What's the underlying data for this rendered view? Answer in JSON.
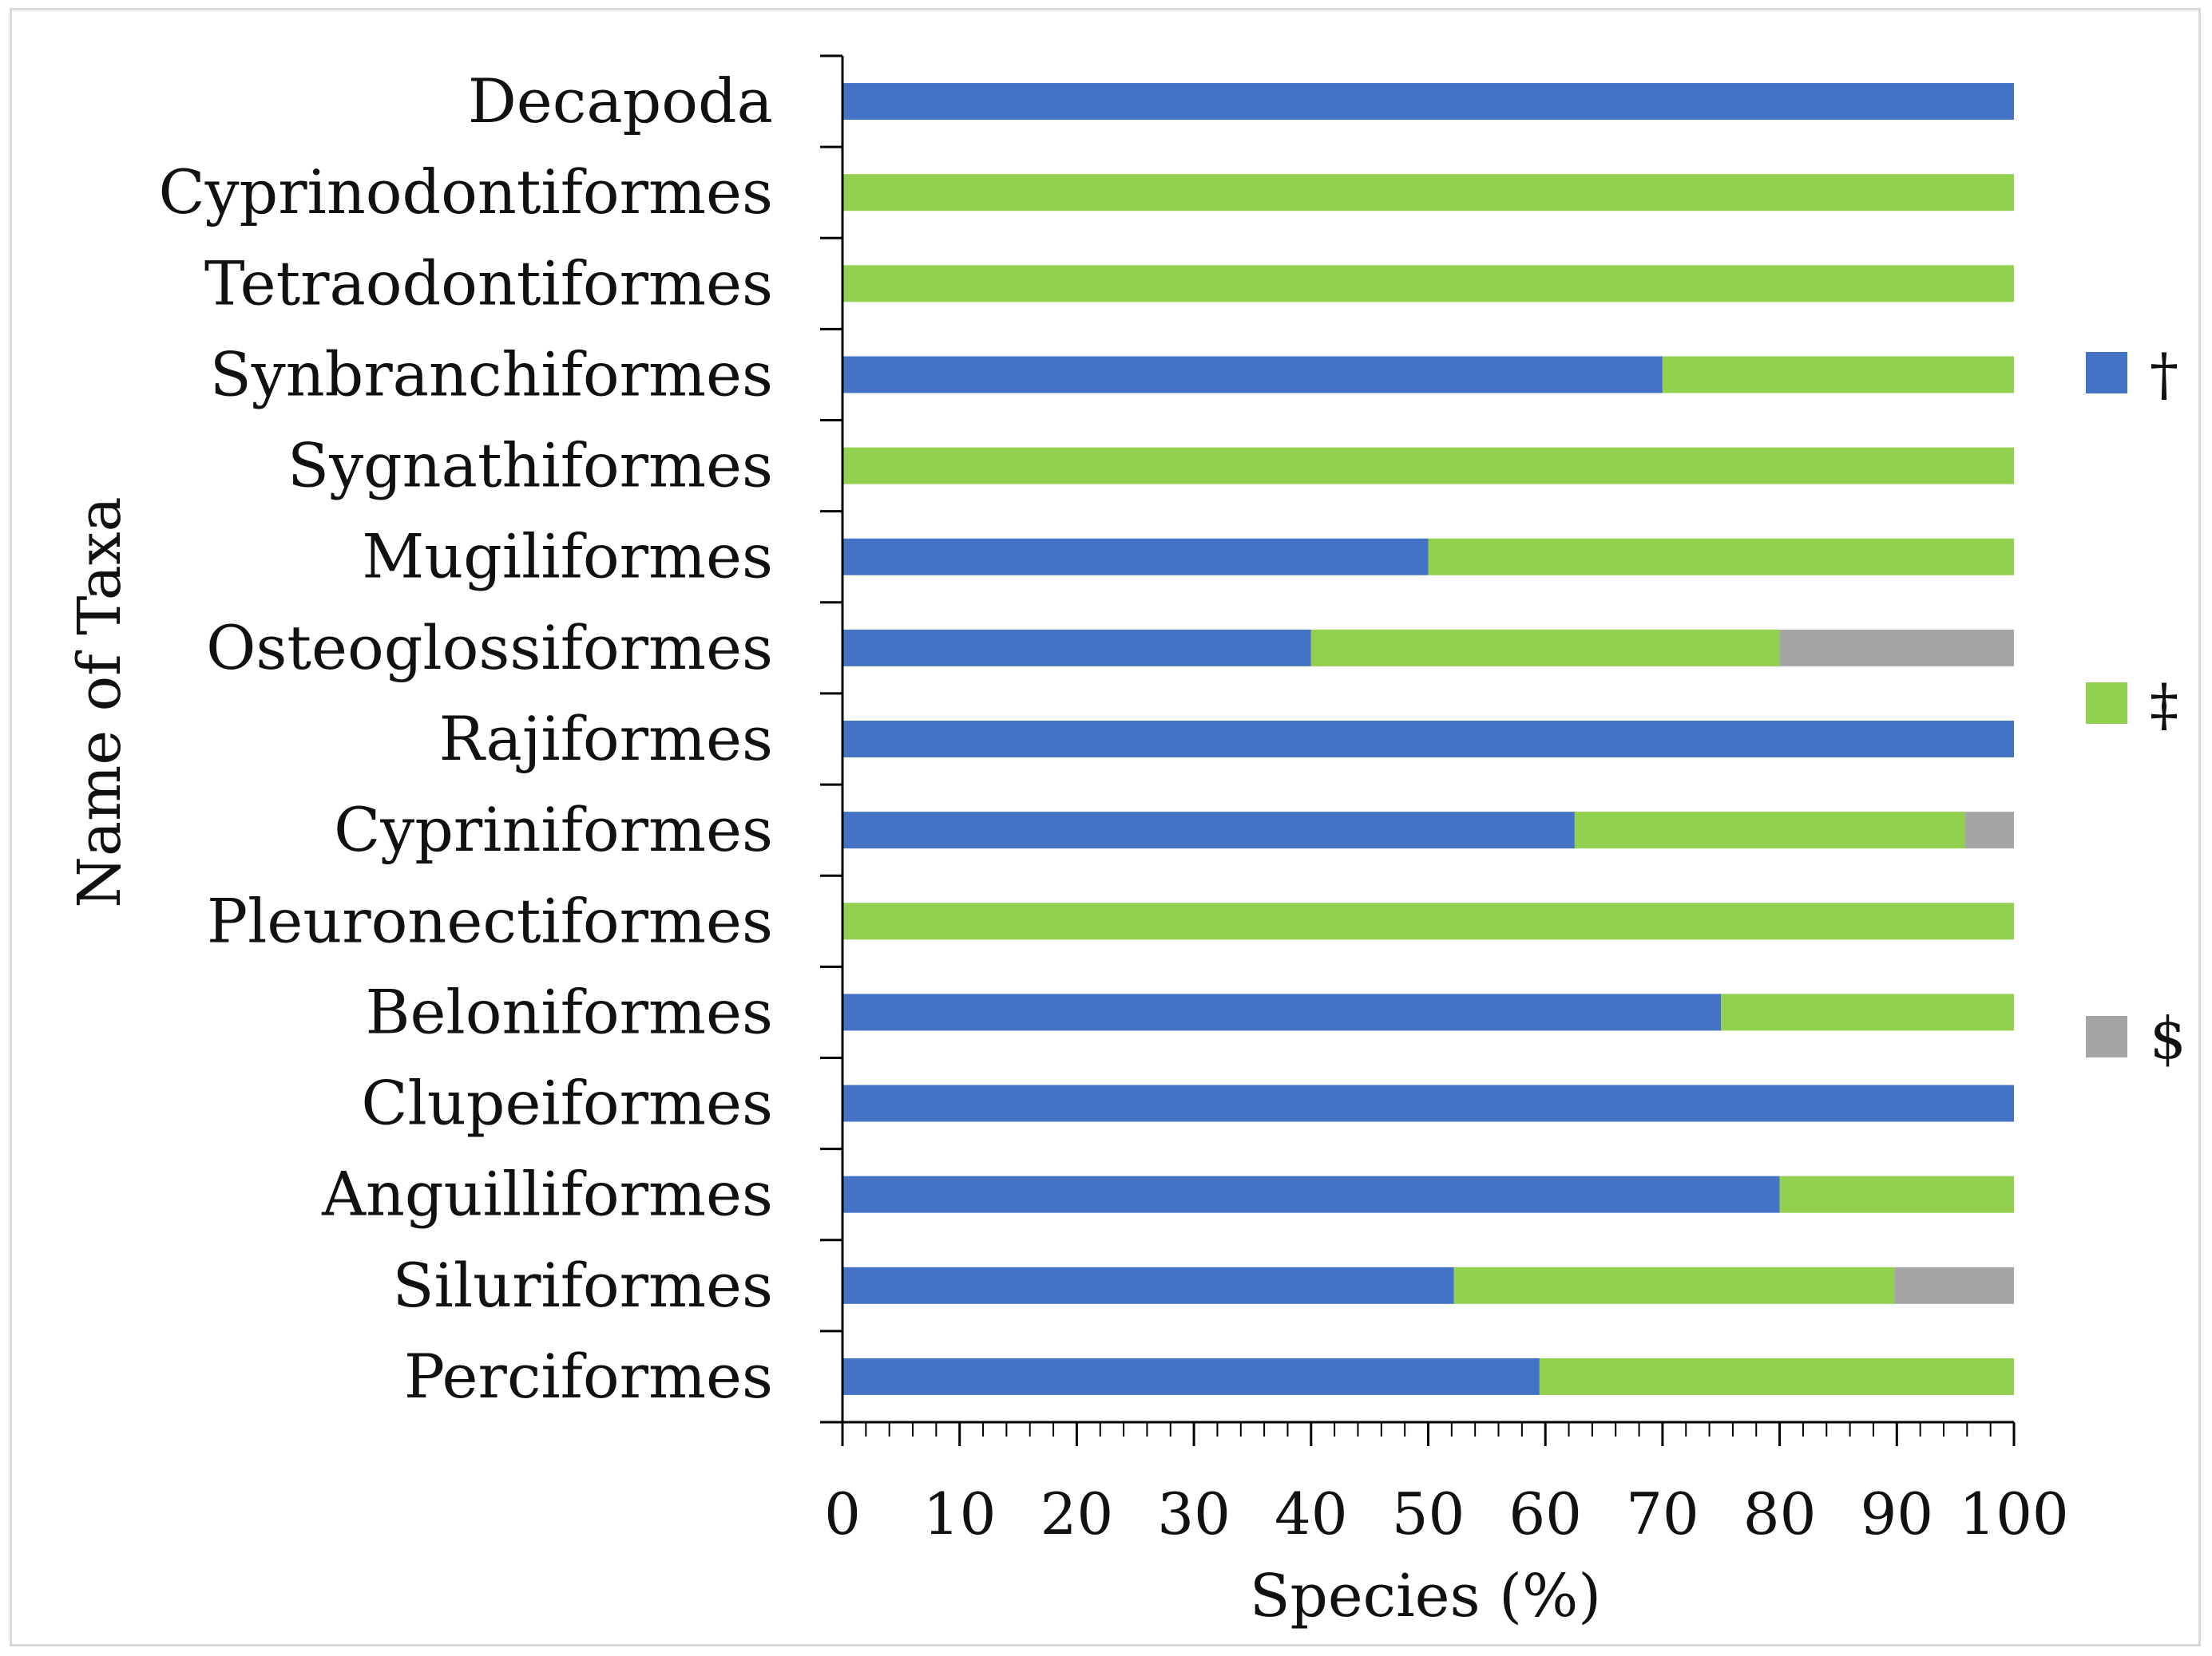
{
  "chart_data": {
    "type": "bar",
    "stacked": true,
    "orientation": "horizontal",
    "title": "",
    "xlabel": "Species (%)",
    "ylabel": "Name of Taxa",
    "xlim": [
      0,
      100
    ],
    "xticks": [
      "0",
      "10",
      "20",
      "30",
      "40",
      "50",
      "60",
      "70",
      "80",
      "90",
      "100"
    ],
    "categories": [
      "Decapoda",
      "Cyprinodontiformes",
      "Tetraodontiformes",
      "Synbranchiformes",
      "Sygnathiformes",
      "Mugiliformes",
      "Osteoglossiformes",
      "Rajiformes",
      "Cypriniformes",
      "Pleuronectiformes",
      "Beloniformes",
      "Clupeiformes",
      "Anguilliformes",
      "Siluriformes",
      "Perciformes"
    ],
    "series": [
      {
        "name": "†",
        "color": "#4472c4",
        "values": [
          100,
          0,
          0,
          70,
          0,
          50,
          40,
          100,
          62.5,
          0,
          75,
          100,
          80,
          52.2,
          59.5
        ]
      },
      {
        "name": "‡",
        "color": "#92d050",
        "values": [
          0,
          100,
          100,
          30,
          100,
          50,
          40,
          0,
          33.3,
          100,
          25,
          0,
          20,
          37.6,
          40.5
        ]
      },
      {
        "name": "$",
        "color": "#a5a5a5",
        "values": [
          0,
          0,
          0,
          0,
          0,
          0,
          20,
          0,
          4.2,
          0,
          0,
          0,
          0,
          10.2,
          0
        ]
      }
    ],
    "legend_position": "right",
    "grid": false
  }
}
